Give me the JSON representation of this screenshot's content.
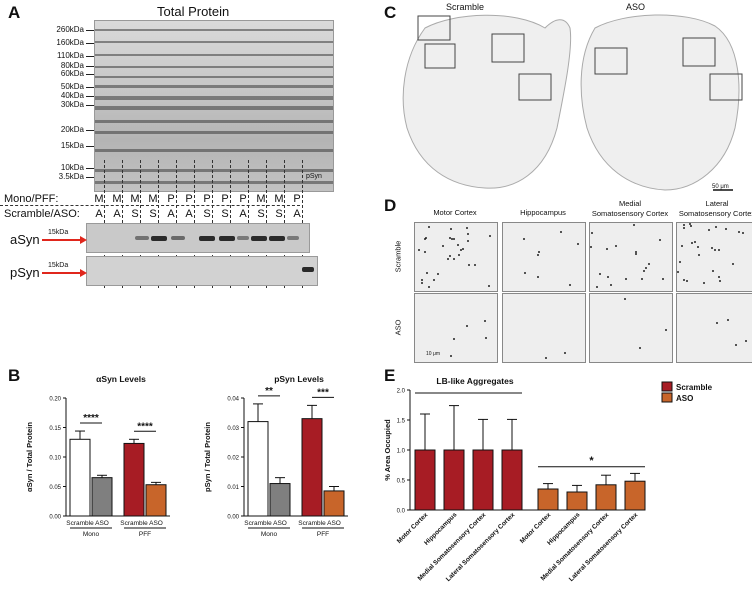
{
  "panels": {
    "A": "A",
    "B": "B",
    "C": "C",
    "D": "D",
    "E": "E"
  },
  "panelA": {
    "title": "Total Protein",
    "markers": [
      "260kDa",
      "160kDa",
      "110kDa",
      "80kDa",
      "60kDa",
      "50kDa",
      "40kDa",
      "30kDa",
      "20kDa",
      "15kDa",
      "10kDa",
      "3.5kDa"
    ],
    "mono_label": "Mono/PFF:",
    "mono_lanes": [
      "M",
      "M",
      "M",
      "M",
      "P",
      "P",
      "P",
      "P",
      "P",
      "M",
      "M",
      "P"
    ],
    "scramble_label": "Scramble/ASO:",
    "scramble_lanes": [
      "A",
      "A",
      "S",
      "S",
      "A",
      "A",
      "S",
      "S",
      "A",
      "S",
      "S",
      "A"
    ],
    "psyn_lane_label": "pSyn",
    "asyn_label": "aSyn",
    "psyn_label": "pSyn",
    "blot_marker": "15kDa"
  },
  "panelB": {
    "left": {
      "title": "αSyn Levels",
      "ylabel": "αSyn / Total Protein",
      "yticks": [
        "0.00",
        "0.05",
        "0.10",
        "0.15",
        "0.20"
      ],
      "xlabels": [
        "Scramble",
        "ASO",
        "Scramble",
        "ASO"
      ],
      "groups": [
        "Mono",
        "PFF"
      ],
      "sig": [
        "****",
        "****"
      ]
    },
    "right": {
      "title": "pSyn Levels",
      "ylabel": "pSyn / Total Protein",
      "yticks": [
        "0.00",
        "0.01",
        "0.02",
        "0.03",
        "0.04"
      ],
      "xlabels": [
        "Scramble",
        "ASO",
        "Scramble",
        "ASO"
      ],
      "groups": [
        "Mono",
        "PFF"
      ],
      "sig": [
        "**",
        "***"
      ]
    }
  },
  "panelC": {
    "scramble": "Scramble",
    "aso": "ASO",
    "scalebar": "50 μm"
  },
  "panelD": {
    "columns": [
      "Motor Cortex",
      "Hippocampus",
      "Medial\nSomatosensory Cortex",
      "Lateral\nSomatosensory Cortex"
    ],
    "col_lines": [
      [
        "Motor Cortex"
      ],
      [
        "Hippocampus"
      ],
      [
        "Medial",
        "Somatosensory Cortex"
      ],
      [
        "Lateral",
        "Somatosensory Cortex"
      ]
    ],
    "rows": [
      "Scramble",
      "ASO"
    ],
    "scalebar": "10 μm"
  },
  "panelE": {
    "title": "LB-like Aggregates",
    "ylabel": "% Area Occupied",
    "yticks": [
      "0.0",
      "0.5",
      "1.0",
      "1.5",
      "2.0"
    ],
    "legend": [
      "Scramble",
      "ASO"
    ],
    "sig": "*",
    "xlabels": [
      "Motor Cortex",
      "Hippocampus",
      "Medial Somatosensory Cortex",
      "Lateral Somatosensory Cortex",
      "Motor Cortex",
      "Hippocampus",
      "Medial Somatosensory Cortex",
      "Lateral Somatosensory Cortex"
    ]
  },
  "colors": {
    "scramble": "#a71c24",
    "aso": "#c8652a",
    "mono_scramble": "#ffffff",
    "mono_aso": "#7f7f7f"
  },
  "chart_data": [
    {
      "type": "bar",
      "title": "αSyn Levels",
      "ylabel": "αSyn / Total Protein",
      "ylim": [
        0,
        0.2
      ],
      "categories": [
        "Mono Scramble",
        "Mono ASO",
        "PFF Scramble",
        "PFF ASO"
      ],
      "values": [
        0.13,
        0.065,
        0.123,
        0.053
      ],
      "errors": [
        0.014,
        0.004,
        0.007,
        0.004
      ]
    },
    {
      "type": "bar",
      "title": "pSyn Levels",
      "ylabel": "pSyn / Total Protein",
      "ylim": [
        0,
        0.04
      ],
      "categories": [
        "Mono Scramble",
        "Mono ASO",
        "PFF Scramble",
        "PFF ASO"
      ],
      "values": [
        0.032,
        0.011,
        0.033,
        0.0085
      ],
      "errors": [
        0.006,
        0.002,
        0.0045,
        0.0015
      ]
    },
    {
      "type": "bar",
      "title": "LB-like Aggregates",
      "ylabel": "% Area Occupied",
      "ylim": [
        0,
        2.0
      ],
      "categories": [
        "Motor Cortex",
        "Hippocampus",
        "Medial Somatosensory Cortex",
        "Lateral Somatosensory Cortex"
      ],
      "series": [
        {
          "name": "Scramble",
          "values": [
            1.0,
            1.0,
            1.0,
            1.0
          ],
          "errors": [
            0.6,
            0.74,
            0.51,
            0.51
          ]
        },
        {
          "name": "ASO",
          "values": [
            0.35,
            0.3,
            0.42,
            0.48
          ],
          "errors": [
            0.09,
            0.11,
            0.16,
            0.13
          ]
        }
      ]
    }
  ]
}
